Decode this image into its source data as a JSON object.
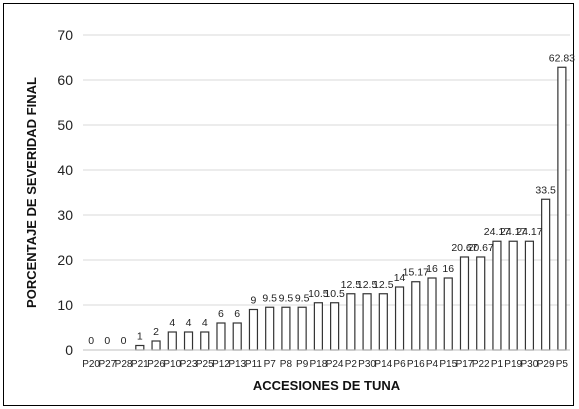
{
  "chart_data": {
    "type": "bar",
    "xlabel": "ACCESIONES DE TUNA",
    "ylabel": "PORCENTAJE DE SEVERIDAD FINAL",
    "ylim": [
      0,
      70
    ],
    "yticks": [
      0,
      10,
      20,
      30,
      40,
      50,
      60,
      70
    ],
    "grid": "horizontal",
    "categories": [
      "P20",
      "P27",
      "P28",
      "P21",
      "P26",
      "P10",
      "P23",
      "P25",
      "P12",
      "P13",
      "P11",
      "P7",
      "P8",
      "P9",
      "P18",
      "P24",
      "P2",
      "P30",
      "P14",
      "P6",
      "P16",
      "P4",
      "P15",
      "P17",
      "P22",
      "P1",
      "P19",
      "P30",
      "P29",
      "P5"
    ],
    "values": [
      0,
      0,
      0,
      1,
      2,
      4,
      4,
      4,
      6,
      6,
      9,
      9.5,
      9.5,
      9.5,
      10.5,
      10.5,
      12.5,
      12.5,
      12.5,
      14,
      15.17,
      16,
      16,
      20.67,
      20.67,
      24.17,
      24.17,
      24.17,
      33.5,
      62.83
    ],
    "labels": [
      "0",
      "0",
      "0",
      "1",
      "2",
      "4",
      "4",
      "4",
      "6",
      "6",
      "9",
      "9.5",
      "9.5",
      "9.5",
      "10.5",
      "10.5",
      "12.5",
      "12.5",
      "12.5",
      "14",
      "15.17",
      "16",
      "16",
      "20.67",
      "20.67",
      "24.17",
      "24.17",
      "24.17",
      "33.5",
      "62.83"
    ],
    "colors": {
      "bar_fill": "#ffffff",
      "bar_stroke": "#333333",
      "grid": "#d9d9d9"
    }
  }
}
